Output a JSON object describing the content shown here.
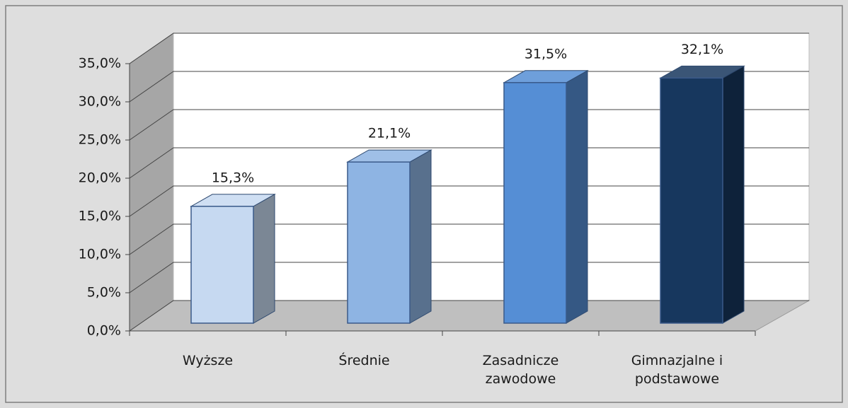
{
  "chart_data": {
    "type": "bar3d",
    "categories": [
      "Wyższe",
      "Średnie",
      "Zasadnicze zawodowe",
      "Gimnazjalne i podstawowe"
    ],
    "values": [
      15.3,
      21.1,
      31.5,
      32.1
    ],
    "value_labels": [
      "15,3%",
      "21,1%",
      "31,5%",
      "32,1%"
    ],
    "colors": [
      "#c6d9f1",
      "#8eb4e3",
      "#558ed5",
      "#17375e"
    ],
    "ylim": [
      0,
      35
    ],
    "yticks": [
      {
        "value": 0,
        "label": "0,0%"
      },
      {
        "value": 5,
        "label": "5,0%"
      },
      {
        "value": 10,
        "label": "10,0%"
      },
      {
        "value": 15,
        "label": "15,0%"
      },
      {
        "value": 20,
        "label": "20,0%"
      },
      {
        "value": 25,
        "label": "25,0%"
      },
      {
        "value": 30,
        "label": "30,0%"
      },
      {
        "value": 35,
        "label": "35,0%"
      }
    ],
    "grid": true
  }
}
